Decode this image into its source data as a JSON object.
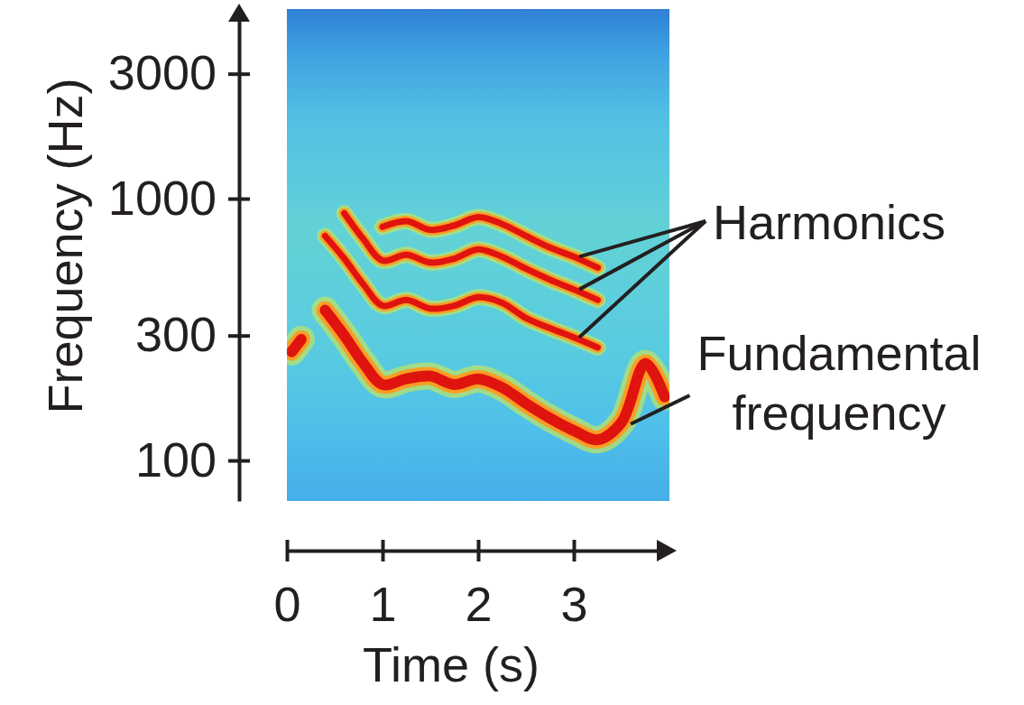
{
  "chart_data": {
    "type": "line",
    "xlabel": "Time (s)",
    "ylabel": "Frequency (Hz)",
    "log": "y",
    "xlim": [
      0,
      4
    ],
    "ylim": [
      70,
      5300
    ],
    "xticks": [
      0,
      1,
      2,
      3
    ],
    "yticks": [
      100,
      300,
      1000,
      3000
    ],
    "x": [
      0.05,
      0.15,
      0.25,
      0.4,
      0.6,
      0.8,
      1.0,
      1.25,
      1.5,
      1.75,
      2.0,
      2.25,
      2.5,
      2.75,
      3.0,
      3.25,
      3.5,
      3.75,
      3.95
    ],
    "series": [
      {
        "color": "#e0140f",
        "values": [
          260,
          290,
          null,
          375,
          300,
          235,
          195,
          205,
          210,
          195,
          205,
          190,
          165,
          145,
          130,
          120,
          140,
          235,
          175
        ]
      },
      {
        "color": "#e0140f",
        "values": [
          null,
          null,
          null,
          720,
          590,
          470,
          390,
          410,
          380,
          390,
          420,
          400,
          350,
          320,
          295,
          270,
          null,
          null,
          null
        ]
      },
      {
        "color": "#e0140f",
        "values": [
          null,
          null,
          null,
          null,
          880,
          700,
          580,
          610,
          570,
          590,
          640,
          600,
          540,
          490,
          450,
          410,
          null,
          null,
          null
        ]
      },
      {
        "color": "#e0140f",
        "values": [
          null,
          null,
          null,
          null,
          null,
          null,
          780,
          820,
          760,
          790,
          850,
          800,
          720,
          650,
          600,
          545,
          null,
          null,
          null
        ]
      }
    ],
    "annotations": [
      {
        "text": "Harmonics"
      },
      {
        "text": "Fundamental frequency"
      }
    ]
  }
}
